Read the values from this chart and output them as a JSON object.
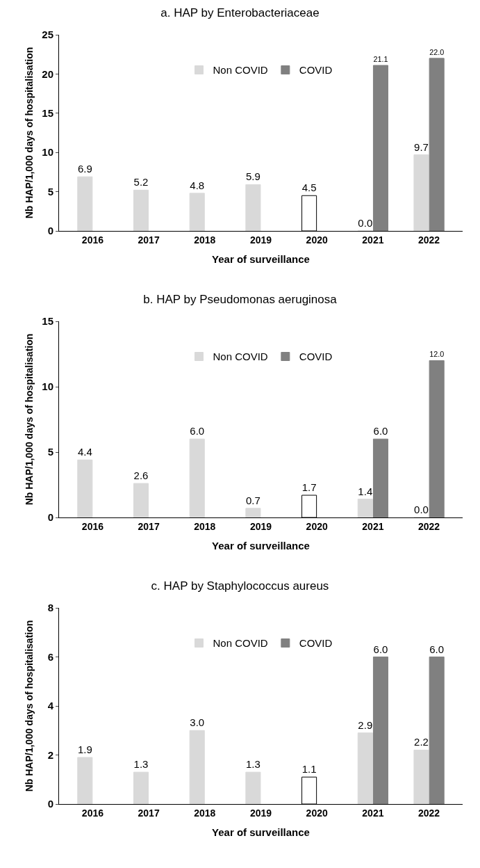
{
  "chart_data": [
    {
      "type": "bar",
      "title": "a. HAP by Enterobacteriaceae",
      "xlabel": "Year of surveillance",
      "ylabel": "Nb HAP/1,000 days of hospitalisation",
      "categories": [
        "2016",
        "2017",
        "2018",
        "2019",
        "2020",
        "2021",
        "2022"
      ],
      "ylim": [
        0,
        25
      ],
      "yticks": [
        0,
        5,
        10,
        15,
        20,
        25
      ],
      "legend": "top",
      "grid": false,
      "series": [
        {
          "name": "Non COVID",
          "color": "#d9d9d9",
          "values": [
            6.9,
            5.2,
            4.8,
            5.9,
            null,
            0.0,
            9.7
          ],
          "value_labels": [
            "6.9",
            "5.2",
            "4.8",
            "5.9",
            null,
            "0.0",
            "9.7"
          ]
        },
        {
          "name": "COVID",
          "color": "#808080",
          "values": [
            null,
            null,
            null,
            null,
            null,
            21.1,
            22.0
          ],
          "value_labels": [
            null,
            null,
            null,
            null,
            null,
            "21.1",
            "22.0"
          ]
        },
        {
          "color": "#ffffff",
          "values": [
            null,
            null,
            null,
            null,
            4.5,
            null,
            null
          ],
          "value_labels": [
            null,
            null,
            null,
            null,
            "4.5",
            null,
            null
          ]
        }
      ]
    },
    {
      "type": "bar",
      "title": "b. HAP by Pseudomonas aeruginosa",
      "xlabel": "Year of surveillance",
      "ylabel": "Nb HAP/1,000 days of hospitalisation",
      "categories": [
        "2016",
        "2017",
        "2018",
        "2019",
        "2020",
        "2021",
        "2022"
      ],
      "ylim": [
        0,
        15
      ],
      "yticks": [
        0,
        5,
        10,
        15
      ],
      "legend": "top",
      "grid": false,
      "series": [
        {
          "name": "Non COVID",
          "color": "#d9d9d9",
          "values": [
            4.4,
            2.6,
            6.0,
            0.7,
            null,
            1.4,
            0.0
          ],
          "value_labels": [
            "4.4",
            "2.6",
            "6.0",
            "0.7",
            null,
            "1.4",
            "0.0"
          ]
        },
        {
          "name": "COVID",
          "color": "#808080",
          "values": [
            null,
            null,
            null,
            null,
            null,
            6.0,
            12.0
          ],
          "value_labels": [
            null,
            null,
            null,
            null,
            null,
            "6.0",
            "12.0"
          ]
        },
        {
          "color": "#ffffff",
          "values": [
            null,
            null,
            null,
            null,
            1.7,
            null,
            null
          ],
          "value_labels": [
            null,
            null,
            null,
            null,
            "1.7",
            null,
            null
          ]
        }
      ]
    },
    {
      "type": "bar",
      "title": "c. HAP by Staphylococcus aureus",
      "xlabel": "Year of surveillance",
      "ylabel": "Nb HAP/1,000 days of hospitalisation",
      "categories": [
        "2016",
        "2017",
        "2018",
        "2019",
        "2020",
        "2021",
        "2022"
      ],
      "ylim": [
        0,
        8
      ],
      "yticks": [
        0,
        2,
        4,
        6,
        8
      ],
      "legend": "top",
      "grid": false,
      "series": [
        {
          "name": "Non COVID",
          "color": "#d9d9d9",
          "values": [
            1.9,
            1.3,
            3.0,
            1.3,
            null,
            2.9,
            2.2
          ],
          "value_labels": [
            "1.9",
            "1.3",
            "3.0",
            "1.3",
            null,
            "2.9",
            "2.2"
          ]
        },
        {
          "name": "COVID",
          "color": "#808080",
          "values": [
            null,
            null,
            null,
            null,
            null,
            6.0,
            6.0
          ],
          "value_labels": [
            null,
            null,
            null,
            null,
            null,
            "6.0",
            "6.0"
          ]
        },
        {
          "color": "#ffffff",
          "values": [
            null,
            null,
            null,
            null,
            1.1,
            null,
            null
          ],
          "value_labels": [
            null,
            null,
            null,
            null,
            "1.1",
            null,
            null
          ]
        }
      ]
    }
  ]
}
